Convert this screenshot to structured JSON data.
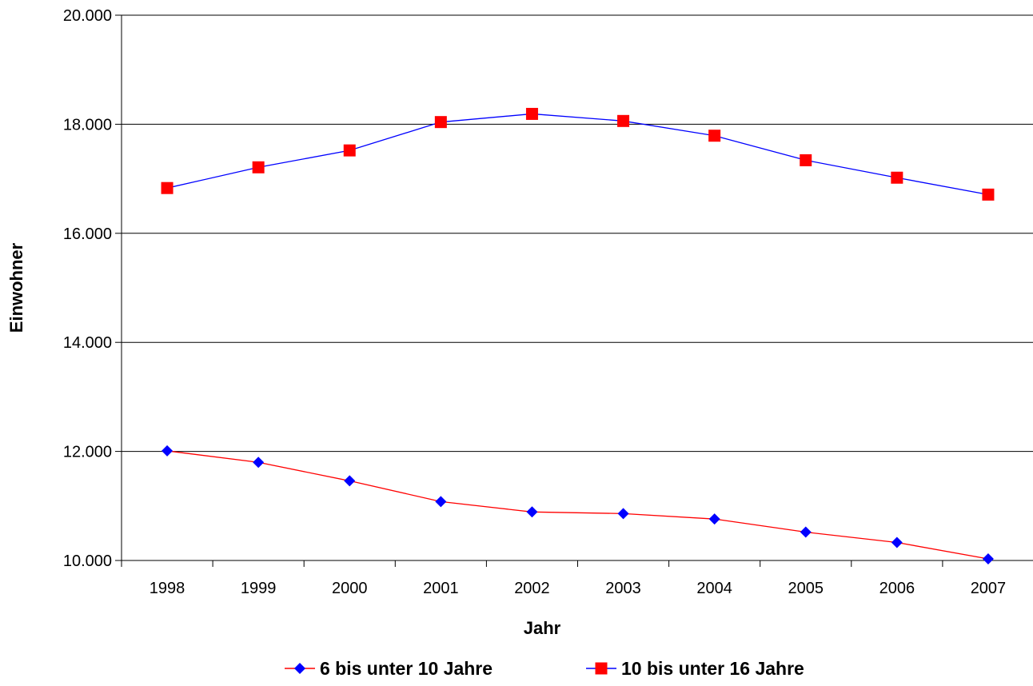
{
  "chart_data": {
    "type": "line",
    "x": [
      "1998",
      "1999",
      "2000",
      "2001",
      "2002",
      "2003",
      "2004",
      "2005",
      "2006",
      "2007"
    ],
    "series": [
      {
        "name": "6 bis unter 10 Jahre",
        "values": [
          12010,
          11800,
          11460,
          11080,
          10890,
          10860,
          10760,
          10520,
          10330,
          10030
        ],
        "line_color": "#ff0000",
        "marker": "diamond",
        "marker_color": "#0000ff"
      },
      {
        "name": "10 bis unter 16 Jahre",
        "values": [
          16830,
          17210,
          17520,
          18040,
          18190,
          18060,
          17790,
          17340,
          17020,
          16710
        ],
        "line_color": "#0000ff",
        "marker": "square",
        "marker_color": "#ff0000"
      }
    ],
    "xlabel": "Jahr",
    "ylabel": "Einwohner",
    "ylim": [
      10000,
      20000
    ],
    "yticks": [
      10000,
      12000,
      14000,
      16000,
      18000,
      20000
    ],
    "ytick_labels": [
      "10.000",
      "12.000",
      "14.000",
      "16.000",
      "18.000",
      "20.000"
    ],
    "grid": "horizontal",
    "legend": "bottom"
  }
}
